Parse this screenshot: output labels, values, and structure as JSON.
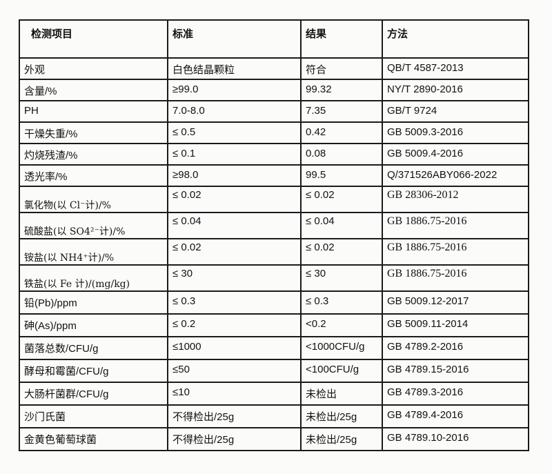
{
  "headers": [
    "检测项目",
    "标准",
    "结果",
    "方法"
  ],
  "rows": [
    {
      "item": "外观",
      "standard": "白色结晶颗粒",
      "result": "符合",
      "method": "QB/T 4587-2013"
    },
    {
      "item": "含量/%",
      "standard": "≥99.0",
      "result": "99.32",
      "method": "NY/T 2890-2016"
    },
    {
      "item": "PH",
      "standard": "7.0-8.0",
      "result": "7.35",
      "method": "GB/T 9724"
    },
    {
      "item": "干燥失重/%",
      "standard": "≤ 0.5",
      "result": "0.42",
      "method": "GB 5009.3-2016"
    },
    {
      "item": "灼烧残渣/%",
      "standard": "≤ 0.1",
      "result": "0.08",
      "method": "GB 5009.4-2016"
    },
    {
      "item": "透光率/%",
      "standard": "≥98.0",
      "result": "99.5",
      "method": "Q/371526ABY066-2022"
    },
    {
      "item": "氯化物(以 Cl⁻计)/%",
      "standard": "≤ 0.02",
      "result": "≤ 0.02",
      "method": "GB 28306-2012"
    },
    {
      "item": "硫酸盐(以 SO4²⁻计)/%",
      "standard": "≤ 0.04",
      "result": "≤ 0.04",
      "method": "GB 1886.75-2016"
    },
    {
      "item": "铵盐(以 NH4⁺计)/%",
      "standard": "≤ 0.02",
      "result": "≤ 0.02",
      "method": "GB 1886.75-2016"
    },
    {
      "item": "铁盐(以 Fe 计)/(mg/kg)",
      "standard": "≤ 30",
      "result": "≤ 30",
      "method": "GB 1886.75-2016"
    },
    {
      "item": "铅(Pb)/ppm",
      "standard": "≤ 0.3",
      "result": "≤ 0.3",
      "method": "GB 5009.12-2017"
    },
    {
      "item": "砷(As)/ppm",
      "standard": "≤ 0.2",
      "result": "<0.2",
      "method": "GB 5009.11-2014"
    },
    {
      "item": "菌落总数/CFU/g",
      "standard": "≤1000",
      "result": "<1000CFU/g",
      "method": "GB 4789.2-2016"
    },
    {
      "item": "酵母和霉菌/CFU/g",
      "standard": "≤50",
      "result": "<100CFU/g",
      "method": "GB 4789.15-2016"
    },
    {
      "item": "大肠杆菌群/CFU/g",
      "standard": "≤10",
      "result": "未检出",
      "method": "GB 4789.3-2016"
    },
    {
      "item": "沙门氏菌",
      "standard": "不得检出/25g",
      "result": "未检出/25g",
      "method": "GB 4789.4-2016"
    },
    {
      "item": "金黄色葡萄球菌",
      "standard": "不得检出/25g",
      "result": "未检出/25g",
      "method": "GB 4789.10-2016"
    }
  ]
}
